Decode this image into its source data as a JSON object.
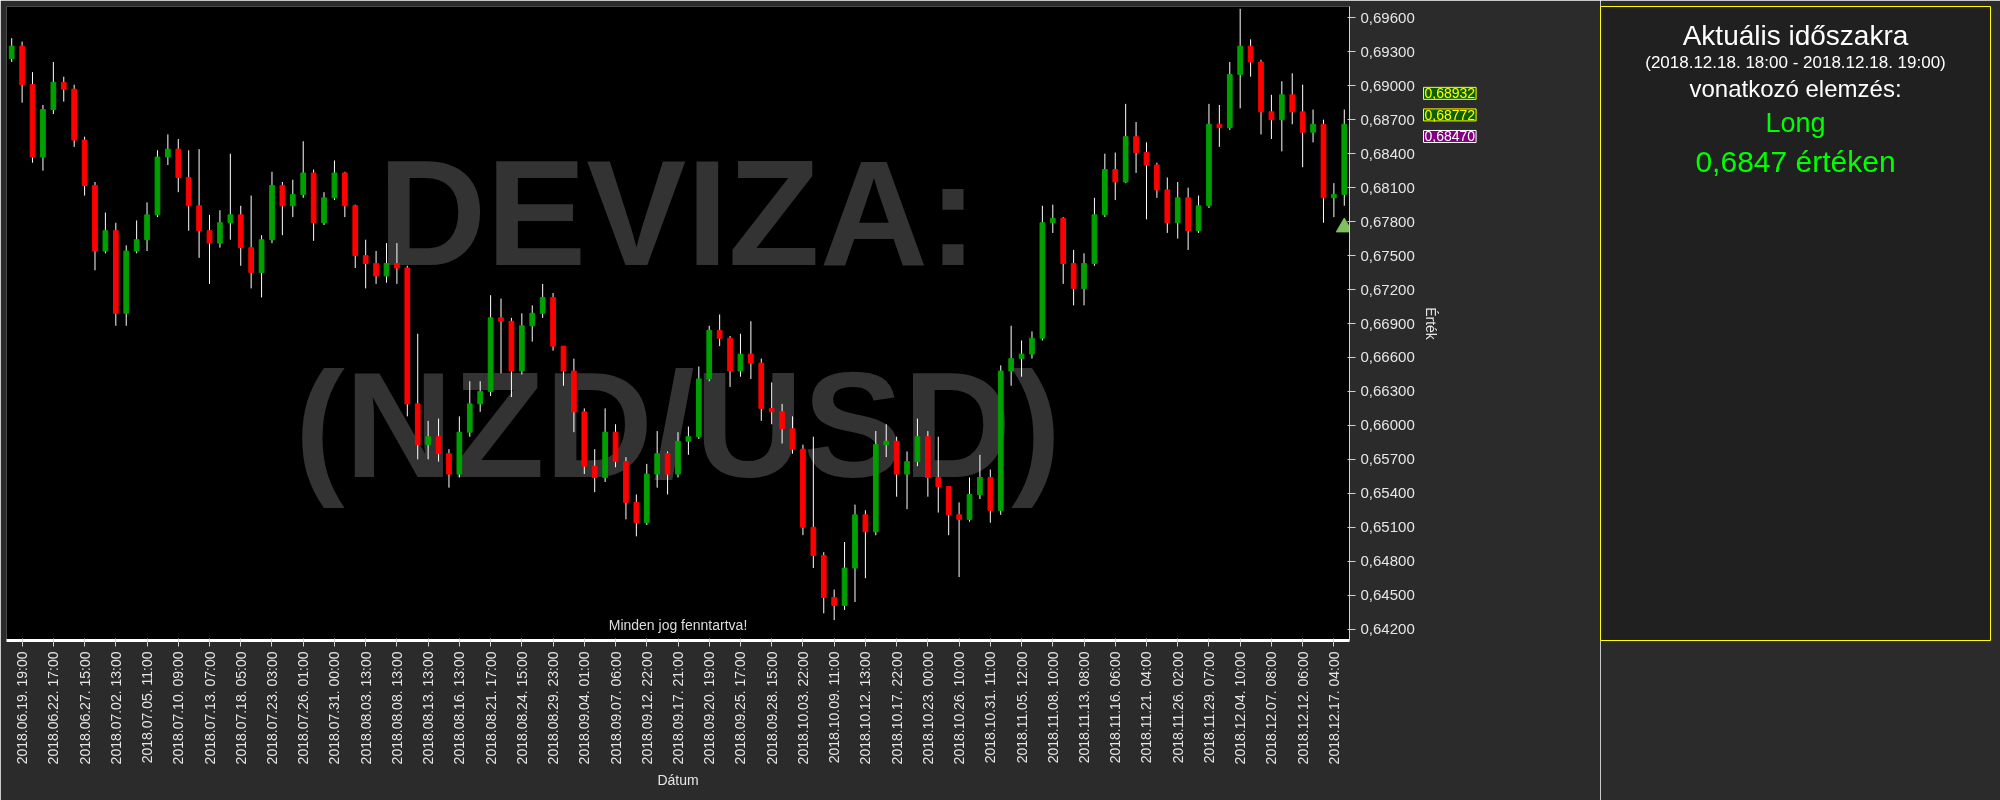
{
  "chart_data": [
    {
      "type": "candlestick",
      "title": "DEVIZA:",
      "subtitle": "(NZD/USD)",
      "xlabel": "Dátum",
      "ylabel": "Érték",
      "categories": [
        null,
        "2018.06.19. 19:00",
        null,
        null,
        "2018.06.22. 17:00",
        null,
        null,
        "2018.06.27. 15:00",
        null,
        null,
        "2018.07.02. 13:00",
        null,
        null,
        "2018.07.05. 11:00",
        null,
        null,
        "2018.07.10. 09:00",
        null,
        null,
        "2018.07.13. 07:00",
        null,
        null,
        "2018.07.18. 05:00",
        null,
        null,
        "2018.07.23. 03:00",
        null,
        null,
        "2018.07.26. 01:00",
        null,
        null,
        "2018.07.31. 00:00",
        null,
        null,
        "2018.08.03. 13:00",
        null,
        null,
        "2018.08.08. 13:00",
        null,
        null,
        "2018.08.13. 13:00",
        null,
        null,
        "2018.08.16. 13:00",
        null,
        null,
        "2018.08.21. 17:00",
        null,
        null,
        "2018.08.24. 15:00",
        null,
        null,
        "2018.08.29. 23:00",
        null,
        null,
        "2018.09.04. 01:00",
        null,
        null,
        "2018.09.07. 06:00",
        null,
        null,
        "2018.09.12. 22:00",
        null,
        null,
        "2018.09.17. 21:00",
        null,
        null,
        "2018.09.20. 19:00",
        null,
        null,
        "2018.09.25. 17:00",
        null,
        null,
        "2018.09.28. 15:00",
        null,
        null,
        "2018.10.03. 22:00",
        null,
        null,
        "2018.10.09. 11:00",
        null,
        null,
        "2018.10.12. 13:00",
        null,
        null,
        "2018.10.17. 22:00",
        null,
        null,
        "2018.10.23. 00:00",
        null,
        null,
        "2018.10.26. 10:00",
        null,
        null,
        "2018.10.31. 11:00",
        null,
        null,
        "2018.11.05. 12:00",
        null,
        null,
        "2018.11.08. 10:00",
        null,
        null,
        "2018.11.13. 08:00",
        null,
        null,
        "2018.11.16. 06:00",
        null,
        null,
        "2018.11.21. 04:00",
        null,
        null,
        "2018.11.26. 02:00",
        null,
        null,
        "2018.11.29. 07:00",
        null,
        null,
        "2018.12.04. 10:00",
        null,
        null,
        "2018.12.07. 08:00",
        null,
        null,
        "2018.12.12. 06:00",
        null,
        null,
        "2018.12.17. 04:00",
        null
      ],
      "ohlc": [
        [
          0.6924,
          0.6942,
          0.6921,
          0.6935
        ],
        [
          0.6935,
          0.6939,
          0.6885,
          0.6901
        ],
        [
          0.6901,
          0.6912,
          0.6832,
          0.6837
        ],
        [
          0.6837,
          0.6883,
          0.6825,
          0.6879
        ],
        [
          0.6879,
          0.6921,
          0.6875,
          0.6903
        ],
        [
          0.6903,
          0.6908,
          0.6886,
          0.6897
        ],
        [
          0.6897,
          0.6901,
          0.6846,
          0.6852
        ],
        [
          0.6852,
          0.6855,
          0.6803,
          0.6812
        ],
        [
          0.6812,
          0.6815,
          0.6737,
          0.6754
        ],
        [
          0.6754,
          0.6788,
          0.6752,
          0.6772
        ],
        [
          0.6772,
          0.6779,
          0.6688,
          0.6699
        ],
        [
          0.6699,
          0.6759,
          0.6688,
          0.6754
        ],
        [
          0.6754,
          0.6781,
          0.6752,
          0.6764
        ],
        [
          0.6764,
          0.6797,
          0.6754,
          0.6786
        ],
        [
          0.6786,
          0.6843,
          0.6784,
          0.6837
        ],
        [
          0.6837,
          0.6857,
          0.683,
          0.6844
        ],
        [
          0.6844,
          0.6853,
          0.6806,
          0.6819
        ],
        [
          0.6819,
          0.6843,
          0.6772,
          0.6794
        ],
        [
          0.6794,
          0.6844,
          0.6748,
          0.6772
        ],
        [
          0.6772,
          0.6786,
          0.6725,
          0.6761
        ],
        [
          0.6761,
          0.679,
          0.6757,
          0.6779
        ],
        [
          0.6779,
          0.684,
          0.6764,
          0.6786
        ],
        [
          0.6786,
          0.6794,
          0.6741,
          0.6757
        ],
        [
          0.6757,
          0.6803,
          0.6721,
          0.6735
        ],
        [
          0.6735,
          0.6768,
          0.6713,
          0.6764
        ],
        [
          0.6764,
          0.6824,
          0.6761,
          0.6812
        ],
        [
          0.6812,
          0.6815,
          0.6768,
          0.6794
        ],
        [
          0.6794,
          0.6817,
          0.6784,
          0.6804
        ],
        [
          0.6804,
          0.6851,
          0.6801,
          0.6823
        ],
        [
          0.6823,
          0.6826,
          0.6763,
          0.6779
        ],
        [
          0.6779,
          0.6806,
          0.6777,
          0.6801
        ],
        [
          0.6801,
          0.6834,
          0.6799,
          0.6823
        ],
        [
          0.6823,
          0.6824,
          0.6784,
          0.6794
        ],
        [
          0.6794,
          0.6795,
          0.6739,
          0.675
        ],
        [
          0.675,
          0.6764,
          0.6721,
          0.6743
        ],
        [
          0.6743,
          0.6754,
          0.6725,
          0.6732
        ],
        [
          0.6732,
          0.6761,
          0.6726,
          0.6743
        ],
        [
          0.6743,
          0.6761,
          0.6725,
          0.6739
        ],
        [
          0.6739,
          0.6741,
          0.6608,
          0.6619
        ],
        [
          0.6619,
          0.6681,
          0.657,
          0.6583
        ],
        [
          0.6583,
          0.6604,
          0.657,
          0.659
        ],
        [
          0.659,
          0.6606,
          0.6568,
          0.6575
        ],
        [
          0.6575,
          0.6579,
          0.6545,
          0.6557
        ],
        [
          0.6557,
          0.6608,
          0.6554,
          0.6594
        ],
        [
          0.6594,
          0.6639,
          0.659,
          0.6619
        ],
        [
          0.6619,
          0.6639,
          0.6612,
          0.663
        ],
        [
          0.663,
          0.6715,
          0.6626,
          0.6695
        ],
        [
          0.6695,
          0.6712,
          0.6646,
          0.6692
        ],
        [
          0.6692,
          0.6695,
          0.6625,
          0.6648
        ],
        [
          0.6648,
          0.6699,
          0.6645,
          0.6688
        ],
        [
          0.6688,
          0.6706,
          0.6674,
          0.6699
        ],
        [
          0.6699,
          0.6725,
          0.6695,
          0.6713
        ],
        [
          0.6713,
          0.6717,
          0.6666,
          0.667
        ],
        [
          0.667,
          0.667,
          0.6635,
          0.6648
        ],
        [
          0.6648,
          0.6659,
          0.6594,
          0.6612
        ],
        [
          0.6612,
          0.6615,
          0.6557,
          0.6564
        ],
        [
          0.6564,
          0.6579,
          0.6541,
          0.6554
        ],
        [
          0.6554,
          0.6615,
          0.655,
          0.6594
        ],
        [
          0.6594,
          0.6601,
          0.6563,
          0.6568
        ],
        [
          0.6568,
          0.6572,
          0.6517,
          0.6532
        ],
        [
          0.6532,
          0.6539,
          0.6502,
          0.6514
        ],
        [
          0.6514,
          0.6566,
          0.6512,
          0.6557
        ],
        [
          0.6557,
          0.6595,
          0.6545,
          0.6575
        ],
        [
          0.6575,
          0.6577,
          0.6539,
          0.6557
        ],
        [
          0.6557,
          0.6594,
          0.6554,
          0.6586
        ],
        [
          0.6586,
          0.6599,
          0.6574,
          0.659
        ],
        [
          0.659,
          0.6652,
          0.6588,
          0.6641
        ],
        [
          0.6641,
          0.6688,
          0.6639,
          0.6684
        ],
        [
          0.6684,
          0.6698,
          0.667,
          0.6677
        ],
        [
          0.6677,
          0.6679,
          0.6634,
          0.6648
        ],
        [
          0.6648,
          0.6681,
          0.6643,
          0.6663
        ],
        [
          0.6663,
          0.6692,
          0.6641,
          0.6655
        ],
        [
          0.6655,
          0.6659,
          0.6604,
          0.6615
        ],
        [
          0.6615,
          0.6638,
          0.6601,
          0.6612
        ],
        [
          0.6612,
          0.6619,
          0.6584,
          0.6597
        ],
        [
          0.6597,
          0.6608,
          0.6575,
          0.6579
        ],
        [
          0.6579,
          0.6583,
          0.6503,
          0.651
        ],
        [
          0.651,
          0.659,
          0.6474,
          0.6485
        ],
        [
          0.6485,
          0.6488,
          0.6434,
          0.6448
        ],
        [
          0.6448,
          0.6455,
          0.6428,
          0.6441
        ],
        [
          0.6441,
          0.6497,
          0.6437,
          0.6474
        ],
        [
          0.6474,
          0.653,
          0.6444,
          0.6521
        ],
        [
          0.6521,
          0.6525,
          0.6465,
          0.6506
        ],
        [
          0.6506,
          0.6595,
          0.6503,
          0.6583
        ],
        [
          0.6583,
          0.6601,
          0.6572,
          0.6586
        ],
        [
          0.6586,
          0.659,
          0.6537,
          0.6557
        ],
        [
          0.6557,
          0.6577,
          0.6526,
          0.6568
        ],
        [
          0.6568,
          0.6606,
          0.6564,
          0.659
        ],
        [
          0.659,
          0.6595,
          0.6537,
          0.6554
        ],
        [
          0.6554,
          0.659,
          0.6523,
          0.6546
        ],
        [
          0.6546,
          0.6546,
          0.6503,
          0.6521
        ],
        [
          0.6521,
          0.6532,
          0.6466,
          0.6517
        ],
        [
          0.6517,
          0.6554,
          0.6515,
          0.6539
        ],
        [
          0.6539,
          0.6574,
          0.6535,
          0.6554
        ],
        [
          0.6554,
          0.6561,
          0.6514,
          0.6525
        ],
        [
          0.6525,
          0.6653,
          0.6521,
          0.6648
        ],
        [
          0.6648,
          0.6688,
          0.6635,
          0.6659
        ],
        [
          0.6659,
          0.6675,
          0.6643,
          0.6663
        ],
        [
          0.6663,
          0.6683,
          0.6659,
          0.6677
        ],
        [
          0.6677,
          0.6794,
          0.6675,
          0.6779
        ],
        [
          0.6779,
          0.6795,
          0.677,
          0.6783
        ],
        [
          0.6783,
          0.6784,
          0.6725,
          0.6743
        ],
        [
          0.6743,
          0.6755,
          0.6706,
          0.6721
        ],
        [
          0.6721,
          0.6752,
          0.6706,
          0.6743
        ],
        [
          0.6743,
          0.6801,
          0.6741,
          0.6786
        ],
        [
          0.6786,
          0.684,
          0.6784,
          0.6826
        ],
        [
          0.6826,
          0.6841,
          0.6799,
          0.6815
        ],
        [
          0.6815,
          0.6884,
          0.6814,
          0.6855
        ],
        [
          0.6855,
          0.6868,
          0.6823,
          0.6841
        ],
        [
          0.6841,
          0.685,
          0.6782,
          0.683
        ],
        [
          0.683,
          0.6832,
          0.6801,
          0.6808
        ],
        [
          0.6808,
          0.6819,
          0.677,
          0.6779
        ],
        [
          0.6779,
          0.6815,
          0.6765,
          0.6801
        ],
        [
          0.6801,
          0.681,
          0.6755,
          0.6772
        ],
        [
          0.6772,
          0.6803,
          0.677,
          0.6794
        ],
        [
          0.6794,
          0.6884,
          0.6792,
          0.6866
        ],
        [
          0.6866,
          0.6883,
          0.6846,
          0.6863
        ],
        [
          0.6863,
          0.6921,
          0.6861,
          0.691
        ],
        [
          0.691,
          0.6968,
          0.688,
          0.6935
        ],
        [
          0.6935,
          0.6941,
          0.6908,
          0.6921
        ],
        [
          0.6921,
          0.6923,
          0.6857,
          0.6877
        ],
        [
          0.6877,
          0.6892,
          0.6853,
          0.687
        ],
        [
          0.687,
          0.6904,
          0.6842,
          0.6892
        ],
        [
          0.6892,
          0.6911,
          0.6866,
          0.6877
        ],
        [
          0.6877,
          0.6901,
          0.6828,
          0.6859
        ],
        [
          0.6859,
          0.6879,
          0.685,
          0.6866
        ],
        [
          0.6866,
          0.687,
          0.6779,
          0.6801
        ],
        [
          0.6801,
          0.6814,
          0.6784,
          0.6804
        ],
        [
          0.6804,
          0.6879,
          0.6794,
          0.6866
        ]
      ],
      "colors": [
        "#00a000",
        "#ff0000",
        "#ff0000",
        "#00a000",
        "#00a000",
        "#ff0000",
        "#ff0000",
        "#ff0000",
        "#ff0000",
        "#00a000",
        "#ff0000",
        "#00a000",
        "#00a000",
        "#00a000",
        "#00a000",
        "#00a000",
        "#ff0000",
        "#ff0000",
        "#ff0000",
        "#ff0000",
        "#00a000",
        "#00a000",
        "#ff0000",
        "#ff0000",
        "#00a000",
        "#00a000",
        "#ff0000",
        "#00a000",
        "#00a000",
        "#ff0000",
        "#00a000",
        "#00a000",
        "#ff0000",
        "#ff0000",
        "#ff0000",
        "#ff0000",
        "#00a000",
        "#ff0000",
        "#ff0000",
        "#ff0000",
        "#00a000",
        "#ff0000",
        "#ff0000",
        "#00a000",
        "#00a000",
        "#00a000",
        "#00a000",
        "#ff0000",
        "#ff0000",
        "#00a000",
        "#00a000",
        "#00a000",
        "#ff0000",
        "#ff0000",
        "#ff0000",
        "#ff0000",
        "#ff0000",
        "#00a000",
        "#ff0000",
        "#ff0000",
        "#ff0000",
        "#00a000",
        "#00a000",
        "#ff0000",
        "#00a000",
        "#00a000",
        "#00a000",
        "#00a000",
        "#ff0000",
        "#ff0000",
        "#00a000",
        "#ff0000",
        "#ff0000",
        "#ff0000",
        "#ff0000",
        "#ff0000",
        "#ff0000",
        "#ff0000",
        "#ff0000",
        "#ff0000",
        "#00a000",
        "#00a000",
        "#ff0000",
        "#00a000",
        "#00a000",
        "#ff0000",
        "#00a000",
        "#00a000",
        "#ff0000",
        "#ff0000",
        "#ff0000",
        "#ff0000",
        "#00a000",
        "#00a000",
        "#ff0000",
        "#00a000",
        "#00a000",
        "#00a000",
        "#00a000",
        "#00a000",
        "#00a000",
        "#ff0000",
        "#ff0000",
        "#00a000",
        "#00a000",
        "#00a000",
        "#ff0000",
        "#00a000",
        "#ff0000",
        "#ff0000",
        "#ff0000",
        "#ff0000",
        "#00a000",
        "#ff0000",
        "#00a000",
        "#00a000",
        "#ff0000",
        "#00a000",
        "#00a000",
        "#ff0000",
        "#ff0000",
        "#ff0000",
        "#00a000",
        "#ff0000",
        "#ff0000",
        "#00a000",
        "#ff0000",
        "#00a000",
        "#00a000"
      ],
      "series": [
        {
          "type": "scatter",
          "marker": "triangle",
          "color": "#80c060",
          "values": [
            null,
            null,
            null,
            null,
            null,
            null,
            null,
            null,
            null,
            null,
            null,
            null,
            null,
            null,
            null,
            null,
            null,
            null,
            null,
            null,
            null,
            null,
            null,
            null,
            null,
            null,
            null,
            null,
            null,
            null,
            null,
            null,
            null,
            null,
            null,
            null,
            null,
            null,
            null,
            null,
            null,
            null,
            null,
            null,
            null,
            null,
            null,
            null,
            null,
            null,
            null,
            null,
            null,
            null,
            null,
            null,
            null,
            null,
            null,
            null,
            null,
            null,
            null,
            null,
            null,
            null,
            null,
            null,
            null,
            null,
            null,
            null,
            null,
            null,
            null,
            null,
            null,
            null,
            null,
            null,
            null,
            null,
            null,
            null,
            null,
            null,
            null,
            null,
            null,
            null,
            null,
            null,
            null,
            null,
            null,
            null,
            null,
            null,
            null,
            null,
            null,
            null,
            null,
            null,
            null,
            null,
            null,
            null,
            null,
            null,
            null,
            null,
            null,
            null,
            null,
            null,
            null,
            null,
            null,
            null,
            null,
            null,
            null,
            null,
            null,
            null,
            null,
            null,
            0.6775
          ]
        }
      ],
      "ylim": [
        0.641,
        0.697
      ],
      "yticks": [
        {
          "value": 0.642,
          "label": "0,64200"
        },
        {
          "value": 0.645,
          "label": "0,64500"
        },
        {
          "value": 0.648,
          "label": "0,64800"
        },
        {
          "value": 0.651,
          "label": "0,65100"
        },
        {
          "value": 0.654,
          "label": "0,65400"
        },
        {
          "value": 0.657,
          "label": "0,65700"
        },
        {
          "value": 0.66,
          "label": "0,66000"
        },
        {
          "value": 0.663,
          "label": "0,66300"
        },
        {
          "value": 0.666,
          "label": "0,66600"
        },
        {
          "value": 0.669,
          "label": "0,66900"
        },
        {
          "value": 0.672,
          "label": "0,67200"
        },
        {
          "value": 0.675,
          "label": "0,67500"
        },
        {
          "value": 0.678,
          "label": "0,67800"
        },
        {
          "value": 0.681,
          "label": "0,68100"
        },
        {
          "value": 0.684,
          "label": "0,68400"
        },
        {
          "value": 0.687,
          "label": "0,68700"
        },
        {
          "value": 0.69,
          "label": "0,69000"
        },
        {
          "value": 0.693,
          "label": "0,69300"
        },
        {
          "value": 0.696,
          "label": "0,69600"
        }
      ],
      "annotations": [
        "Minden jog fenntartva!",
        "0,68932",
        "0,68772",
        "0,68470"
      ]
    },
    {
      "type": "other",
      "title": "Aktuális időszakra",
      "subtitle": "(2018.12.18. 18:00 - 2018.12.18. 19:00)",
      "annotations": [
        "vonatkozó elemzés:",
        "Long",
        "0,6847 értéken"
      ]
    }
  ]
}
